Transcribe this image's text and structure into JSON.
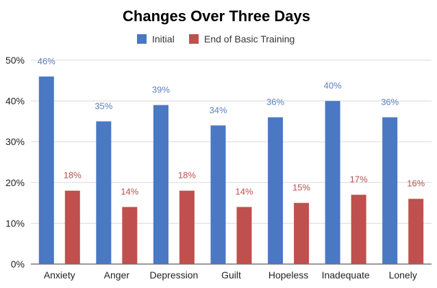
{
  "chart_data": {
    "type": "bar",
    "title": "Changes Over Three Days",
    "xlabel": "",
    "ylabel": "",
    "categories": [
      "Anxiety",
      "Anger",
      "Depression",
      "Guilt",
      "Hopeless",
      "Inadequate",
      "Lonely"
    ],
    "series": [
      {
        "name": "Initial",
        "color": "#4a78c2",
        "label_color": "#5b7fbf",
        "values": [
          46,
          35,
          39,
          34,
          36,
          40,
          36
        ],
        "labels": [
          "46%",
          "35%",
          "39%",
          "34%",
          "36%",
          "40%",
          "36%"
        ]
      },
      {
        "name": "End of Basic Training",
        "color": "#c0504d",
        "label_color": "#b5524f",
        "values": [
          18,
          14,
          18,
          14,
          15,
          17,
          16
        ],
        "labels": [
          "18%",
          "14%",
          "18%",
          "14%",
          "15%",
          "17%",
          "16%"
        ]
      }
    ],
    "ylim": [
      0,
      50
    ],
    "yticks": [
      0,
      10,
      20,
      30,
      40,
      50
    ],
    "ytick_labels": [
      "0%",
      "10%",
      "20%",
      "30%",
      "40%",
      "50%"
    ],
    "grid": true,
    "legend_position": "top-center"
  }
}
